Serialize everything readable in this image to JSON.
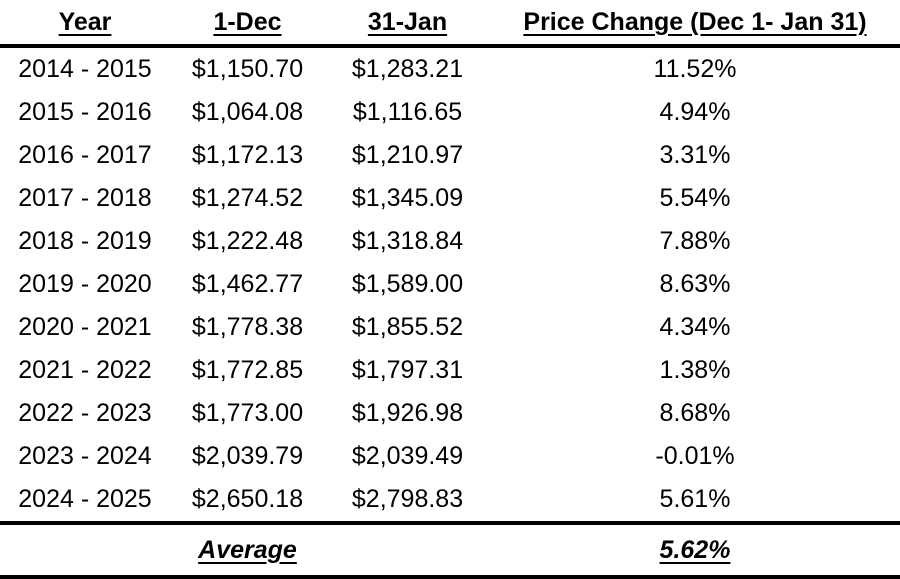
{
  "table": {
    "headers": [
      "Year",
      "1-Dec",
      "31-Jan",
      "Price Change (Dec 1- Jan 31)"
    ],
    "rows": [
      [
        "2014 - 2015",
        "$1,150.70",
        "$1,283.21",
        "11.52%"
      ],
      [
        "2015 - 2016",
        "$1,064.08",
        "$1,116.65",
        "4.94%"
      ],
      [
        "2016 - 2017",
        "$1,172.13",
        "$1,210.97",
        "3.31%"
      ],
      [
        "2017 - 2018",
        "$1,274.52",
        "$1,345.09",
        "5.54%"
      ],
      [
        "2018 - 2019",
        "$1,222.48",
        "$1,318.84",
        "7.88%"
      ],
      [
        "2019 - 2020",
        "$1,462.77",
        "$1,589.00",
        "8.63%"
      ],
      [
        "2020 - 2021",
        "$1,778.38",
        "$1,855.52",
        "4.34%"
      ],
      [
        "2021 - 2022",
        "$1,772.85",
        "$1,797.31",
        "1.38%"
      ],
      [
        "2022 - 2023",
        "$1,773.00",
        "$1,926.98",
        "8.68%"
      ],
      [
        "2023 - 2024",
        "$2,039.79",
        "$2,039.49",
        "-0.01%"
      ],
      [
        "2024 - 2025",
        "$2,650.18",
        "$2,798.83",
        "5.61%"
      ]
    ],
    "footer": {
      "label": "Average",
      "value": "5.62%"
    }
  },
  "chart_data": {
    "type": "table",
    "columns": [
      "Year",
      "1-Dec",
      "31-Jan",
      "Price Change (Dec 1- Jan 31)"
    ],
    "rows": [
      {
        "year": "2014 - 2015",
        "dec_1": 1150.7,
        "jan_31": 1283.21,
        "price_change_pct": 11.52
      },
      {
        "year": "2015 - 2016",
        "dec_1": 1064.08,
        "jan_31": 1116.65,
        "price_change_pct": 4.94
      },
      {
        "year": "2016 - 2017",
        "dec_1": 1172.13,
        "jan_31": 1210.97,
        "price_change_pct": 3.31
      },
      {
        "year": "2017 - 2018",
        "dec_1": 1274.52,
        "jan_31": 1345.09,
        "price_change_pct": 5.54
      },
      {
        "year": "2018 - 2019",
        "dec_1": 1222.48,
        "jan_31": 1318.84,
        "price_change_pct": 7.88
      },
      {
        "year": "2019 - 2020",
        "dec_1": 1462.77,
        "jan_31": 1589.0,
        "price_change_pct": 8.63
      },
      {
        "year": "2020 - 2021",
        "dec_1": 1778.38,
        "jan_31": 1855.52,
        "price_change_pct": 4.34
      },
      {
        "year": "2021 - 2022",
        "dec_1": 1772.85,
        "jan_31": 1797.31,
        "price_change_pct": 1.38
      },
      {
        "year": "2022 - 2023",
        "dec_1": 1773.0,
        "jan_31": 1926.98,
        "price_change_pct": 8.68
      },
      {
        "year": "2023 - 2024",
        "dec_1": 2039.79,
        "jan_31": 2039.49,
        "price_change_pct": -0.01
      },
      {
        "year": "2024 - 2025",
        "dec_1": 2650.18,
        "jan_31": 2798.83,
        "price_change_pct": 5.61
      }
    ],
    "summary": {
      "label": "Average",
      "price_change_pct": 5.62
    }
  }
}
